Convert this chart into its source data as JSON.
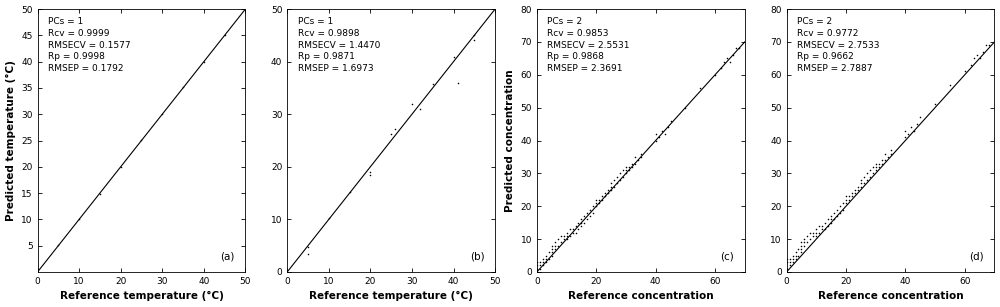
{
  "panels": [
    {
      "label": "(a)",
      "xlabel": "Reference temperature (°C)",
      "ylabel": "Predicted temperature (°C)",
      "xlim": [
        0,
        50
      ],
      "ylim": [
        0,
        50
      ],
      "xticks": [
        0,
        10,
        20,
        30,
        40,
        50
      ],
      "yticks": [
        5,
        10,
        15,
        20,
        25,
        30,
        35,
        40,
        45,
        50
      ],
      "line_x": [
        0,
        50
      ],
      "line_y": [
        0,
        50
      ],
      "scatter_x": [
        5,
        10,
        15,
        20,
        25,
        30,
        35,
        40,
        45
      ],
      "scatter_y": [
        5.1,
        10.1,
        14.9,
        20.0,
        25.1,
        30.0,
        35.1,
        40.0,
        45.1
      ],
      "stats": "PCs = 1\nRcv = 0.9999\nRMSECV = 0.1577\nRp = 0.9998\nRMSEP = 0.1792"
    },
    {
      "label": "(b)",
      "xlabel": "Reference temperature (°C)",
      "ylabel": "",
      "xlim": [
        0,
        50
      ],
      "ylim": [
        0,
        50
      ],
      "xticks": [
        0,
        10,
        20,
        30,
        40,
        50
      ],
      "yticks": [
        0,
        10,
        20,
        30,
        40,
        50
      ],
      "line_x": [
        0,
        50
      ],
      "line_y": [
        0,
        50
      ],
      "scatter_x": [
        5,
        5,
        10,
        15,
        20,
        20,
        25,
        26,
        30,
        32,
        35,
        40,
        41,
        45,
        45
      ],
      "scatter_y": [
        4.8,
        3.5,
        10.2,
        15.3,
        19.0,
        18.5,
        26.2,
        27.1,
        32.0,
        31.0,
        35.8,
        40.8,
        36.0,
        44.2,
        45.1
      ],
      "stats": "PCs = 1\nRcv = 0.9898\nRMSECV = 1.4470\nRp = 0.9871\nRMSEP = 1.6973"
    },
    {
      "label": "(c)",
      "xlabel": "Reference concentration",
      "ylabel": "Predicted concentration",
      "xlim": [
        0,
        70
      ],
      "ylim": [
        0,
        80
      ],
      "xticks": [
        0,
        20,
        40,
        60
      ],
      "yticks": [
        0,
        10,
        20,
        30,
        40,
        50,
        60,
        70,
        80
      ],
      "line_x": [
        0,
        70
      ],
      "line_y": [
        0,
        70
      ],
      "scatter_x": [
        0,
        0,
        0,
        0,
        1,
        1,
        1,
        2,
        2,
        2,
        3,
        3,
        3,
        4,
        4,
        5,
        5,
        5,
        5,
        6,
        6,
        6,
        7,
        7,
        8,
        8,
        9,
        9,
        10,
        10,
        10,
        11,
        11,
        12,
        12,
        13,
        13,
        14,
        14,
        15,
        15,
        15,
        16,
        16,
        17,
        17,
        18,
        18,
        19,
        19,
        20,
        20,
        20,
        21,
        21,
        22,
        22,
        23,
        23,
        24,
        24,
        25,
        25,
        25,
        26,
        26,
        27,
        27,
        28,
        28,
        29,
        29,
        30,
        30,
        30,
        31,
        31,
        32,
        32,
        33,
        33,
        34,
        35,
        35,
        40,
        40,
        41,
        42,
        43,
        44,
        45,
        50,
        55,
        60,
        62,
        63,
        64,
        65,
        66,
        67,
        68
      ],
      "scatter_y": [
        0,
        1,
        2,
        3,
        1,
        2,
        3,
        2,
        3,
        4,
        3,
        4,
        5,
        4,
        6,
        5,
        6,
        7,
        8,
        7,
        8,
        9,
        8,
        10,
        9,
        11,
        10,
        11,
        10,
        11,
        12,
        11,
        13,
        12,
        13,
        12,
        14,
        13,
        15,
        14,
        16,
        15,
        15,
        17,
        16,
        18,
        17,
        19,
        18,
        20,
        20,
        21,
        22,
        21,
        22,
        22,
        23,
        23,
        24,
        24,
        25,
        25,
        26,
        27,
        26,
        28,
        27,
        29,
        28,
        30,
        29,
        31,
        30,
        31,
        32,
        31,
        32,
        32,
        33,
        33,
        35,
        34,
        35,
        36,
        40,
        42,
        41,
        43,
        42,
        44,
        46,
        50,
        56,
        60,
        62,
        64,
        65,
        64,
        66,
        68,
        68
      ],
      "stats": "PCs = 2\nRcv = 0.9853\nRMSECV = 2.5531\nRp = 0.9868\nRMSEP = 2.3691"
    },
    {
      "label": "(d)",
      "xlabel": "Reference concentration",
      "ylabel": "",
      "xlim": [
        0,
        70
      ],
      "ylim": [
        0,
        80
      ],
      "xticks": [
        0,
        20,
        40,
        60
      ],
      "yticks": [
        0,
        10,
        20,
        30,
        40,
        50,
        60,
        70,
        80
      ],
      "line_x": [
        0,
        70
      ],
      "line_y": [
        0,
        70
      ],
      "scatter_x": [
        0,
        0,
        0,
        0,
        1,
        1,
        1,
        2,
        2,
        2,
        3,
        3,
        3,
        4,
        4,
        5,
        5,
        5,
        5,
        6,
        6,
        6,
        7,
        7,
        8,
        8,
        9,
        9,
        10,
        10,
        10,
        11,
        11,
        12,
        12,
        13,
        13,
        14,
        14,
        15,
        15,
        15,
        16,
        16,
        17,
        17,
        18,
        18,
        19,
        19,
        20,
        20,
        20,
        21,
        21,
        22,
        22,
        23,
        23,
        24,
        24,
        25,
        25,
        25,
        26,
        26,
        27,
        27,
        28,
        28,
        29,
        29,
        30,
        30,
        30,
        31,
        31,
        32,
        32,
        33,
        33,
        34,
        35,
        35,
        40,
        40,
        41,
        42,
        43,
        44,
        45,
        50,
        55,
        60,
        62,
        63,
        64,
        65,
        66,
        67,
        68
      ],
      "scatter_y": [
        0,
        1,
        3,
        4,
        2,
        3,
        4,
        3,
        4,
        5,
        4,
        5,
        6,
        5,
        7,
        6,
        7,
        8,
        9,
        8,
        9,
        10,
        9,
        11,
        10,
        12,
        11,
        12,
        11,
        12,
        13,
        12,
        14,
        13,
        14,
        13,
        15,
        14,
        16,
        15,
        17,
        16,
        16,
        18,
        17,
        19,
        18,
        20,
        19,
        21,
        21,
        22,
        23,
        22,
        23,
        23,
        24,
        24,
        25,
        25,
        26,
        26,
        27,
        28,
        27,
        29,
        28,
        30,
        29,
        31,
        30,
        32,
        31,
        32,
        33,
        32,
        33,
        33,
        34,
        34,
        36,
        35,
        36,
        37,
        41,
        43,
        42,
        44,
        43,
        45,
        47,
        51,
        57,
        61,
        63,
        65,
        66,
        65,
        67,
        69,
        69
      ],
      "stats": "PCs = 2\nRcv = 0.9772\nRMSECV = 2.7533\nRp = 0.9662\nRMSEP = 2.7887"
    }
  ],
  "fig_width": 10.0,
  "fig_height": 3.07,
  "scatter_color": "black",
  "line_color": "black",
  "scatter_size": 5,
  "scatter_marker": ".",
  "font_size_label": 7.5,
  "font_size_tick": 6.5,
  "font_size_stats": 6.5,
  "font_size_panel_label": 7.5
}
